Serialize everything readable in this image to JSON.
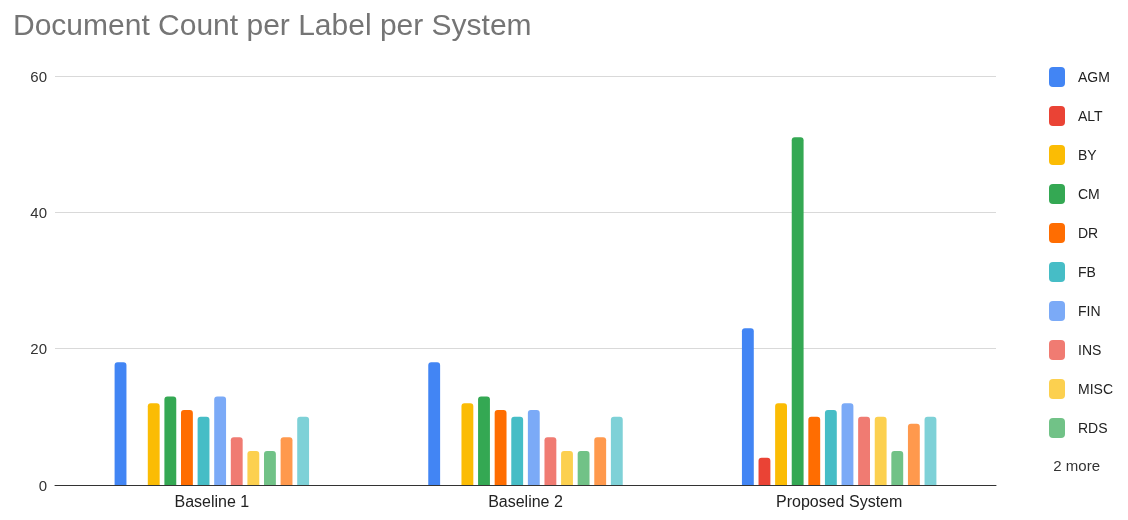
{
  "chart_data": {
    "type": "bar",
    "title": "Document Count per Label per System",
    "categories": [
      "Baseline 1",
      "Baseline 2",
      "Proposed System"
    ],
    "series": [
      {
        "name": "AGM",
        "color": "#4285f4",
        "values": [
          18,
          18,
          23
        ]
      },
      {
        "name": "ALT",
        "color": "#ea4335",
        "values": [
          0,
          0,
          4
        ]
      },
      {
        "name": "BY",
        "color": "#fbbc04",
        "values": [
          12,
          12,
          12
        ]
      },
      {
        "name": "CM",
        "color": "#34a853",
        "values": [
          13,
          13,
          51
        ]
      },
      {
        "name": "DR",
        "color": "#ff6d01",
        "values": [
          11,
          11,
          10
        ]
      },
      {
        "name": "FB",
        "color": "#46bdc6",
        "values": [
          10,
          10,
          11
        ]
      },
      {
        "name": "FIN",
        "color": "#7baaf7",
        "values": [
          13,
          11,
          12
        ]
      },
      {
        "name": "INS",
        "color": "#f07b72",
        "values": [
          7,
          7,
          10
        ]
      },
      {
        "name": "MISC",
        "color": "#fcd04f",
        "values": [
          5,
          5,
          10
        ]
      },
      {
        "name": "RDS",
        "color": "#71c287",
        "values": [
          5,
          5,
          5
        ]
      },
      {
        "color": "#ff994d",
        "values": [
          7,
          7,
          9
        ]
      },
      {
        "color": "#7ed1d7",
        "values": [
          10,
          10,
          10
        ]
      }
    ],
    "ylim": [
      0,
      60
    ],
    "yticks": [
      0,
      20,
      40,
      60
    ],
    "grid": "y",
    "legend": "right",
    "annotations": [
      "2 more"
    ]
  }
}
